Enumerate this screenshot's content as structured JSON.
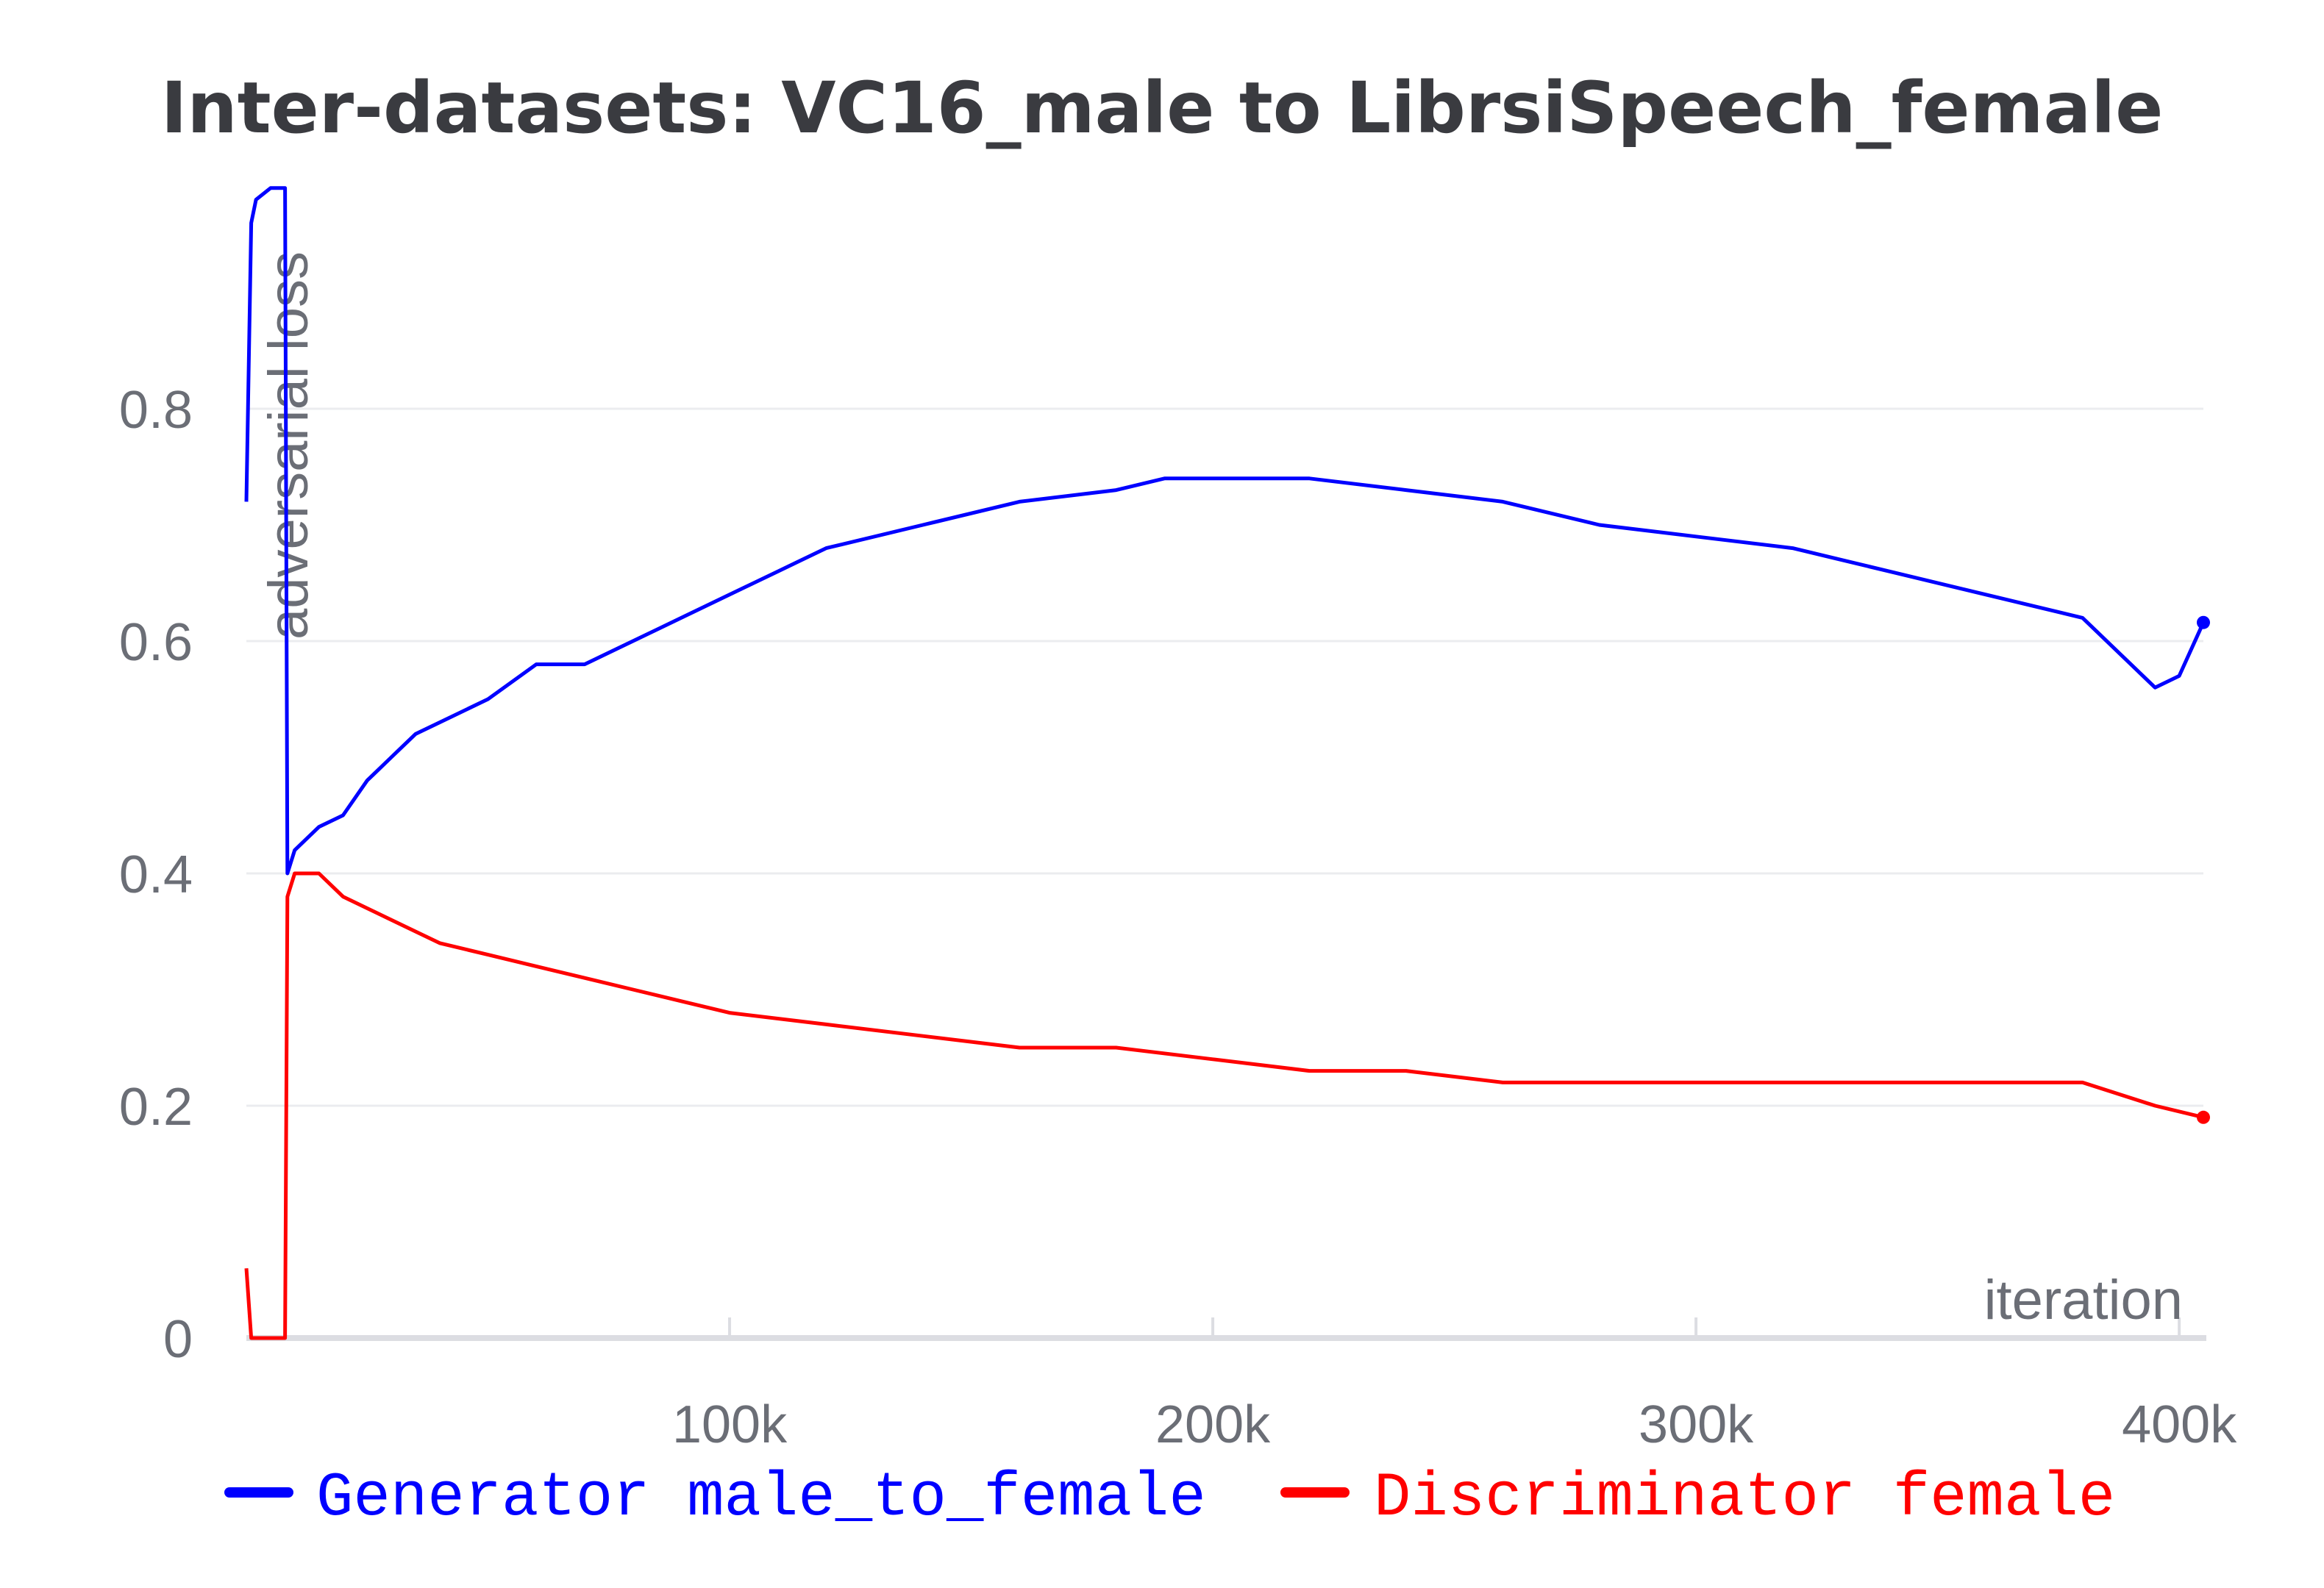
{
  "chart_data": {
    "type": "line",
    "title": "Inter-datasets: VC16_male to LibrsiSpeech_female",
    "xlabel": "iteration",
    "ylabel": "adversarial loss",
    "xlim": [
      0,
      405000
    ],
    "ylim": [
      0,
      1.0
    ],
    "x_ticks": [
      {
        "value": 100000,
        "label": "100k"
      },
      {
        "value": 200000,
        "label": "200k"
      },
      {
        "value": 300000,
        "label": "300k"
      },
      {
        "value": 400000,
        "label": "400k"
      }
    ],
    "y_ticks": [
      {
        "value": 0,
        "label": "0"
      },
      {
        "value": 0.2,
        "label": "0.2"
      },
      {
        "value": 0.4,
        "label": "0.4"
      },
      {
        "value": 0.6,
        "label": "0.6"
      },
      {
        "value": 0.8,
        "label": "0.8"
      }
    ],
    "grid": true,
    "legend_position": "bottom",
    "series": [
      {
        "name": "Generator male_to_female",
        "color": "#0000ff",
        "last_value": 0.616,
        "x": [
          0,
          1000,
          2000,
          5000,
          8000,
          8500,
          10000,
          15000,
          20000,
          25000,
          30000,
          35000,
          40000,
          50000,
          60000,
          70000,
          80000,
          90000,
          100000,
          110000,
          120000,
          140000,
          160000,
          180000,
          190000,
          200000,
          220000,
          240000,
          260000,
          280000,
          300000,
          320000,
          340000,
          360000,
          380000,
          390000,
          395000,
          400000,
          405000
        ],
        "values": [
          0.72,
          0.96,
          0.98,
          0.99,
          0.99,
          0.4,
          0.42,
          0.44,
          0.45,
          0.48,
          0.5,
          0.52,
          0.53,
          0.55,
          0.58,
          0.58,
          0.6,
          0.62,
          0.64,
          0.66,
          0.68,
          0.7,
          0.72,
          0.73,
          0.74,
          0.74,
          0.74,
          0.73,
          0.72,
          0.7,
          0.69,
          0.68,
          0.66,
          0.64,
          0.62,
          0.58,
          0.56,
          0.57,
          0.616
        ]
      },
      {
        "name": "Discriminator female",
        "color": "#ff0000",
        "last_value": 0.19,
        "x": [
          0,
          1000,
          8000,
          8500,
          10000,
          15000,
          20000,
          30000,
          40000,
          50000,
          60000,
          70000,
          80000,
          90000,
          100000,
          120000,
          140000,
          160000,
          180000,
          200000,
          220000,
          240000,
          260000,
          280000,
          300000,
          320000,
          340000,
          360000,
          380000,
          395000,
          405000
        ],
        "values": [
          0.06,
          0.0,
          0.0,
          0.38,
          0.4,
          0.4,
          0.38,
          0.36,
          0.34,
          0.33,
          0.32,
          0.31,
          0.3,
          0.29,
          0.28,
          0.27,
          0.26,
          0.25,
          0.25,
          0.24,
          0.23,
          0.23,
          0.22,
          0.22,
          0.22,
          0.22,
          0.22,
          0.22,
          0.22,
          0.2,
          0.19
        ]
      }
    ]
  }
}
